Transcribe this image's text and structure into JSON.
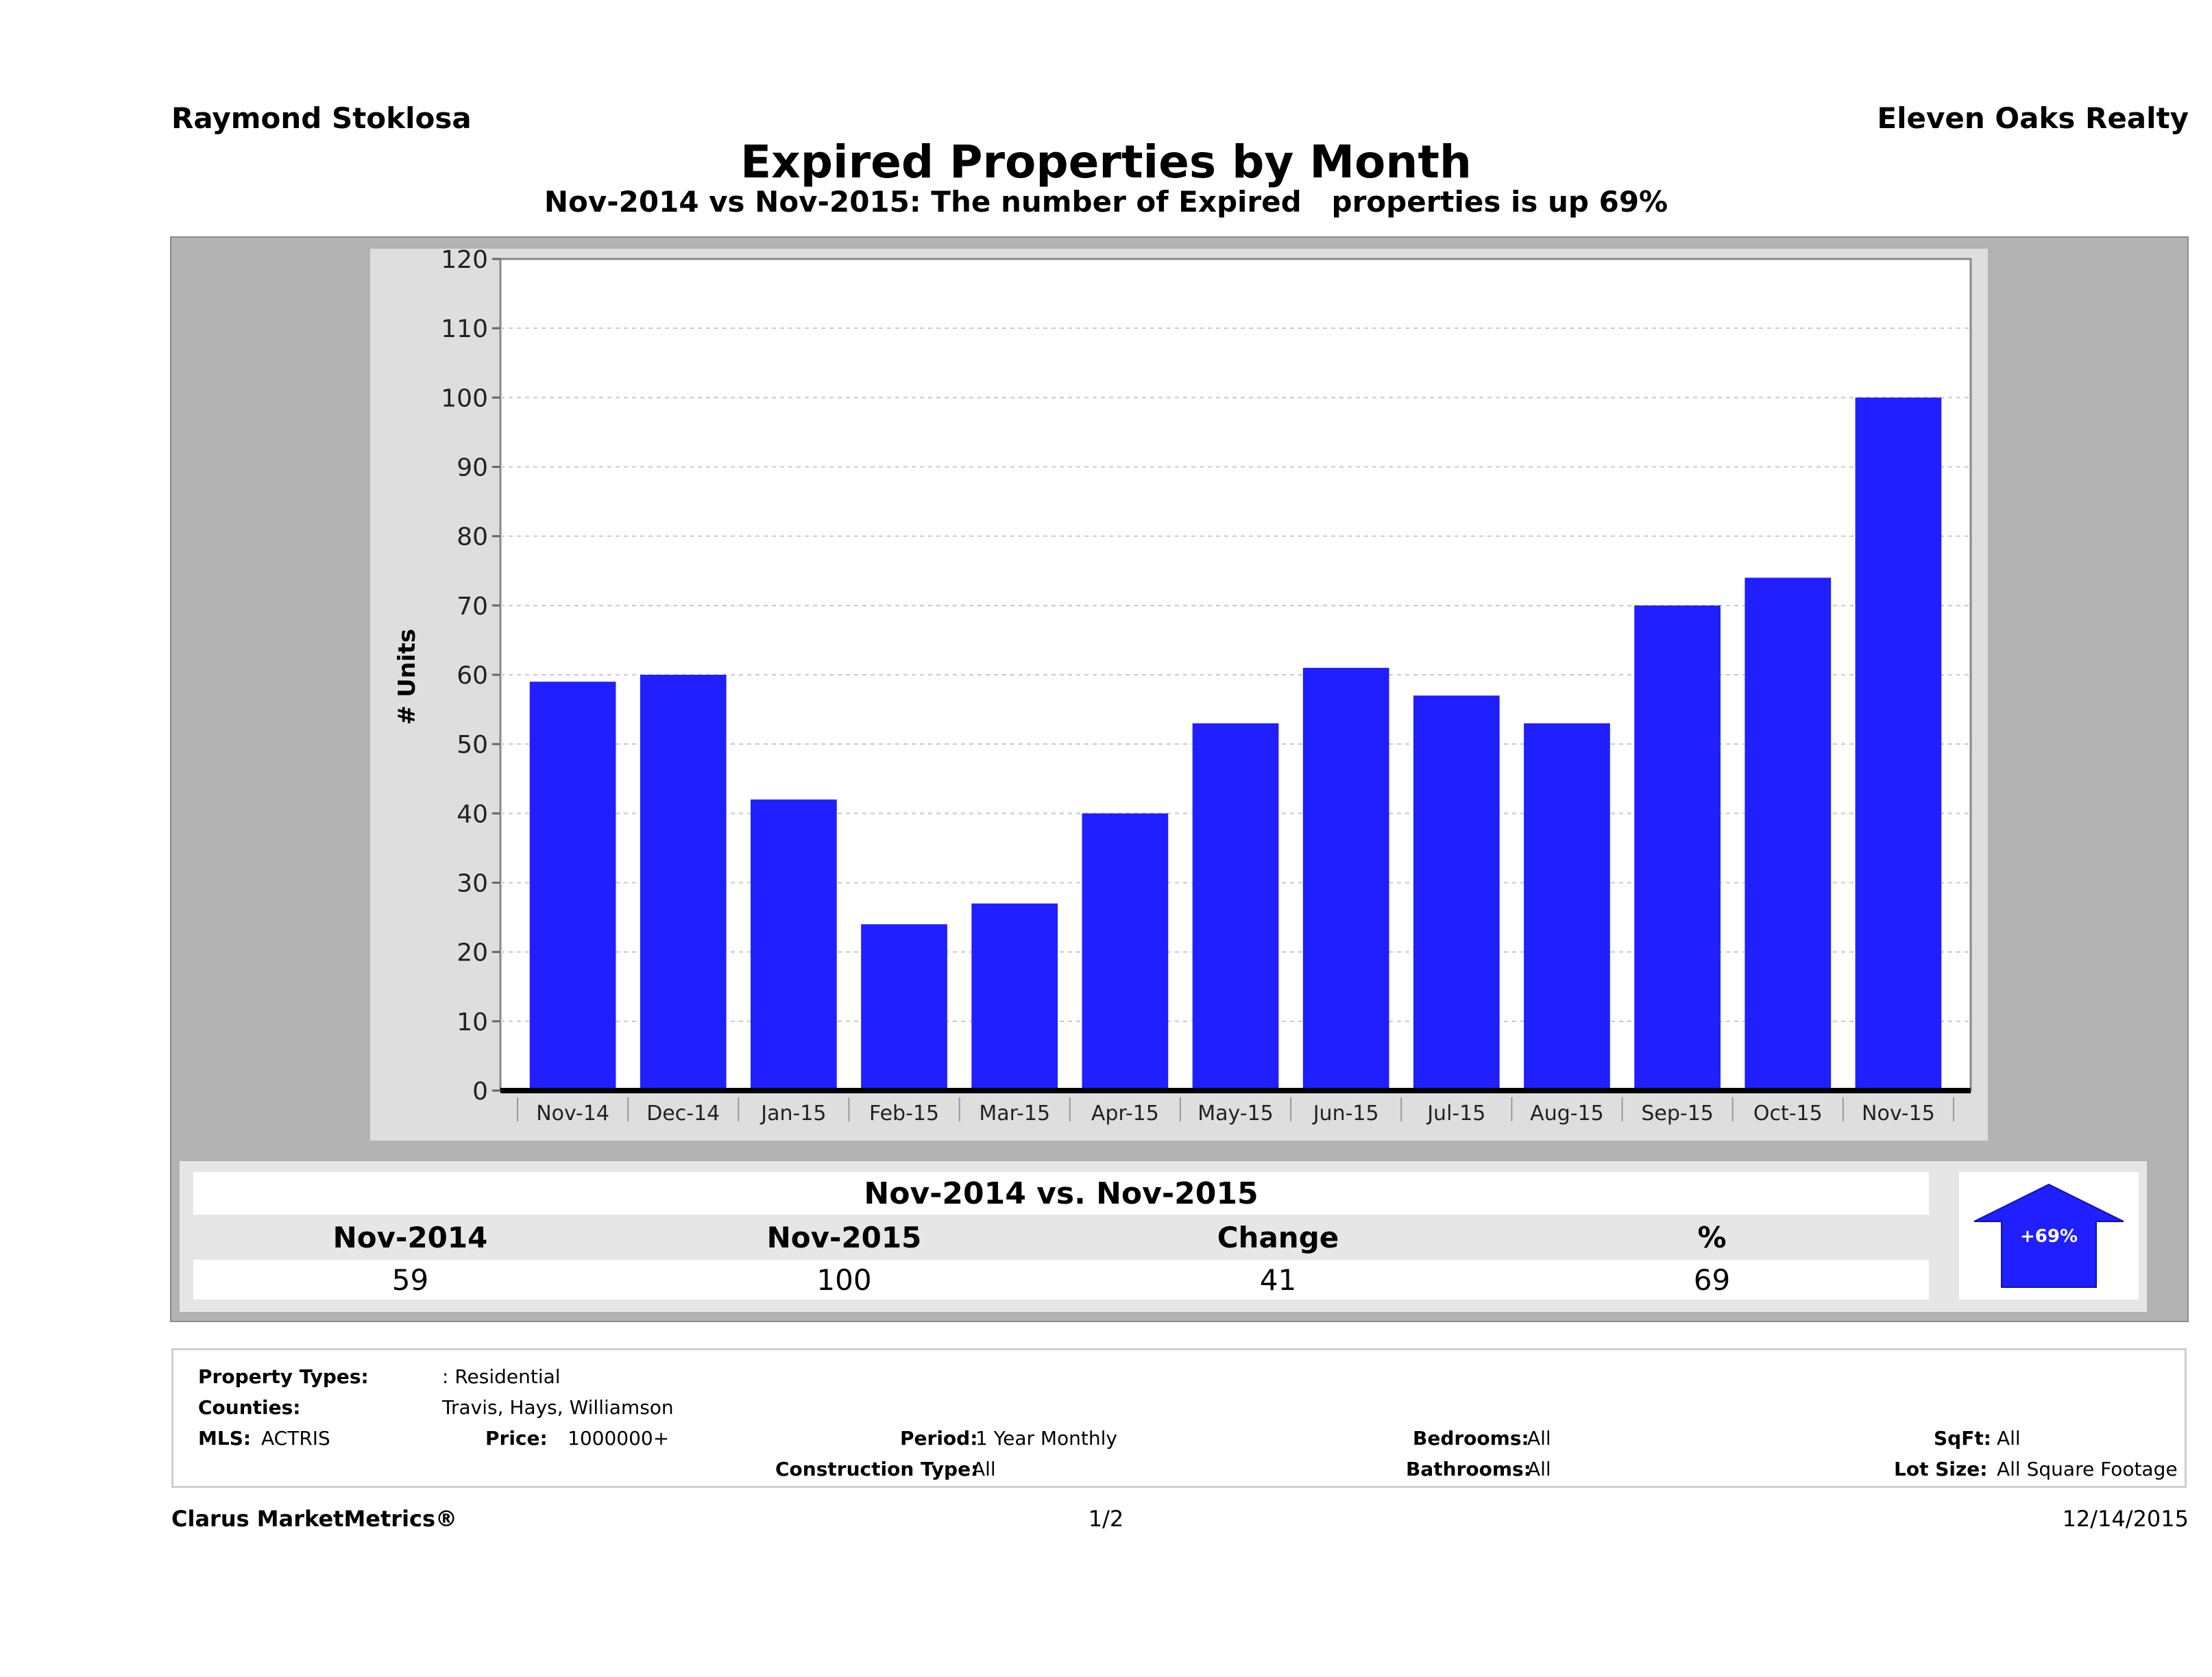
{
  "header": {
    "agent_name": "Raymond Stoklosa",
    "company": "Eleven Oaks Realty"
  },
  "chart_data": {
    "type": "bar",
    "title": "Expired Properties by Month",
    "subtitle": "Nov-2014 vs Nov-2015: The number of Expired   properties is up 69%",
    "xlabel": "",
    "ylabel": "# Units",
    "ylim": [
      0,
      120
    ],
    "yticks": [
      "0",
      "10",
      "20",
      "30",
      "40",
      "50",
      "60",
      "70",
      "80",
      "90",
      "100",
      "110",
      "120"
    ],
    "grid": true,
    "categories": [
      "Nov-14",
      "Dec-14",
      "Jan-15",
      "Feb-15",
      "Mar-15",
      "Apr-15",
      "May-15",
      "Jun-15",
      "Jul-15",
      "Aug-15",
      "Sep-15",
      "Oct-15",
      "Nov-15"
    ],
    "values": [
      59,
      60,
      42,
      24,
      27,
      40,
      53,
      61,
      57,
      53,
      70,
      74,
      100
    ],
    "bar_color": "#1f1fff"
  },
  "summary": {
    "title": "Nov-2014 vs. Nov-2015",
    "headers": [
      "Nov-2014",
      "Nov-2015",
      "Change",
      "%"
    ],
    "values": [
      "59",
      "100",
      "41",
      "69"
    ],
    "badge": "+69%",
    "badge_color": "#1f1fff"
  },
  "info": {
    "property_types_label": "Property Types:",
    "property_types_value": ": Residential",
    "counties_label": "Counties:",
    "counties_value": "Travis, Hays, Williamson",
    "mls_label": "MLS:",
    "mls_value": "ACTRIS",
    "price_label": "Price:",
    "price_value": "1000000+",
    "period_label": "Period:",
    "period_value": "1 Year Monthly",
    "construction_label": "Construction Type:",
    "construction_value": "All",
    "bedrooms_label": "Bedrooms:",
    "bedrooms_value": "All",
    "bathrooms_label": "Bathrooms:",
    "bathrooms_value": "All",
    "sqft_label": "SqFt:",
    "sqft_value": "All",
    "lotsize_label": "Lot Size:",
    "lotsize_value": "All Square Footage"
  },
  "footer": {
    "brand": "Clarus MarketMetrics®",
    "page": "1/2",
    "date": "12/14/2015"
  }
}
